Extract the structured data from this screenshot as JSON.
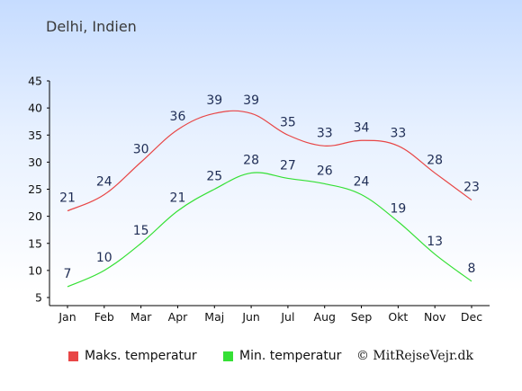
{
  "page": {
    "title": "Delhi, Indien",
    "copyright": "© MitRejseVejr.dk"
  },
  "colors": {
    "max": "#e84646",
    "min": "#35e035",
    "axis": "#000000",
    "label": "#1f2d55"
  },
  "legend": {
    "max_label": "Maks. temperatur",
    "min_label": "Min. temperatur"
  },
  "chart_data": {
    "type": "line",
    "categories": [
      "Jan",
      "Feb",
      "Mar",
      "Apr",
      "Maj",
      "Jun",
      "Jul",
      "Aug",
      "Sep",
      "Okt",
      "Nov",
      "Dec"
    ],
    "series": [
      {
        "name": "Maks. temperatur",
        "values": [
          21,
          24,
          30,
          36,
          39,
          39,
          35,
          33,
          34,
          33,
          28,
          23
        ]
      },
      {
        "name": "Min. temperatur",
        "values": [
          7,
          10,
          15,
          21,
          25,
          28,
          27,
          26,
          24,
          19,
          13,
          8
        ]
      }
    ],
    "ylim": [
      5,
      45
    ],
    "yticks": [
      5,
      10,
      15,
      20,
      25,
      30,
      35,
      40,
      45
    ],
    "grid": false,
    "legend": "bottom"
  }
}
